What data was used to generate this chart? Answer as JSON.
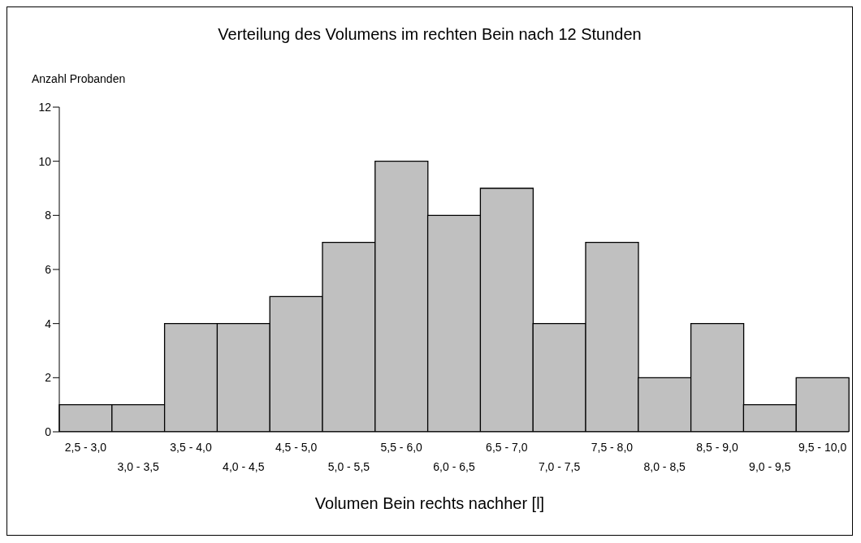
{
  "chart_data": {
    "type": "bar",
    "title": "Verteilung des Volumens im rechten Bein nach 12 Stunden",
    "ylabel": "Anzahl Probanden",
    "xlabel": "Volumen Bein rechts nachher [l]",
    "categories": [
      "2,5 - 3,0",
      "3,0 - 3,5",
      "3,5 - 4,0",
      "4,0 - 4,5",
      "4,5 - 5,0",
      "5,0 - 5,5",
      "5,5 - 6,0",
      "6,0 - 6,5",
      "6,5 - 7,0",
      "7,0 - 7,5",
      "7,5 - 8,0",
      "8,0 - 8,5",
      "8,5 - 9,0",
      "9,0 - 9,5",
      "9,5 - 10,0"
    ],
    "values": [
      1,
      1,
      4,
      4,
      5,
      7,
      10,
      8,
      9,
      4,
      7,
      2,
      4,
      1,
      2
    ],
    "color": "#c0c0c0",
    "ylim": [
      0,
      12
    ],
    "yticks": [
      0,
      2,
      4,
      6,
      8,
      10,
      12
    ]
  }
}
